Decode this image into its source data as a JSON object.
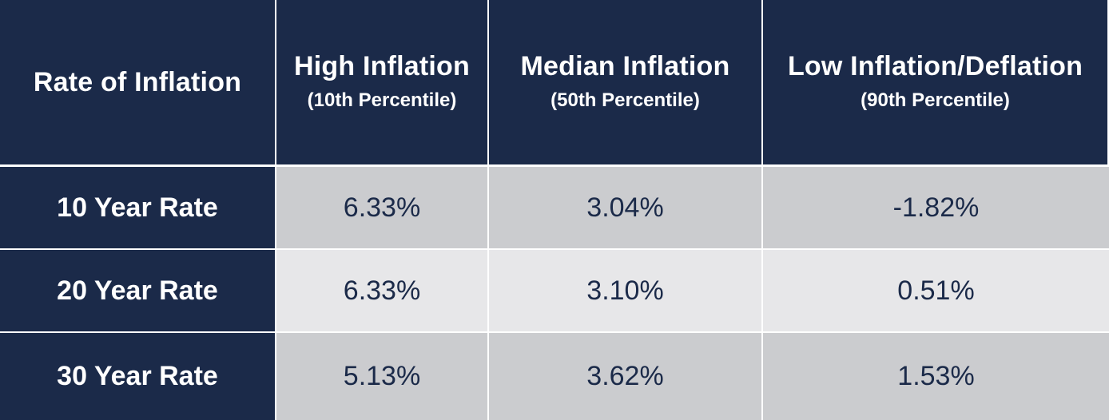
{
  "table": {
    "header": {
      "row_label": "Rate of Inflation",
      "columns": [
        {
          "title": "High Inflation",
          "subtitle": "(10th Percentile)"
        },
        {
          "title": "Median Inflation",
          "subtitle": "(50th Percentile)"
        },
        {
          "title": "Low Inflation/Deflation",
          "subtitle": "(90th Percentile)"
        }
      ]
    },
    "rows": [
      {
        "label": "10 Year Rate",
        "values": [
          "6.33%",
          "3.04%",
          "-1.82%"
        ]
      },
      {
        "label": "20 Year Rate",
        "values": [
          "6.33%",
          "3.10%",
          "0.51%"
        ]
      },
      {
        "label": "30 Year Rate",
        "values": [
          "5.13%",
          "3.62%",
          "1.53%"
        ]
      }
    ],
    "colors": {
      "header_bg": "#1b2a49",
      "header_text": "#ffffff",
      "row_shade_dark": "#cbcccf",
      "row_shade_light": "#e7e7e9",
      "value_text": "#1b2a49"
    }
  }
}
